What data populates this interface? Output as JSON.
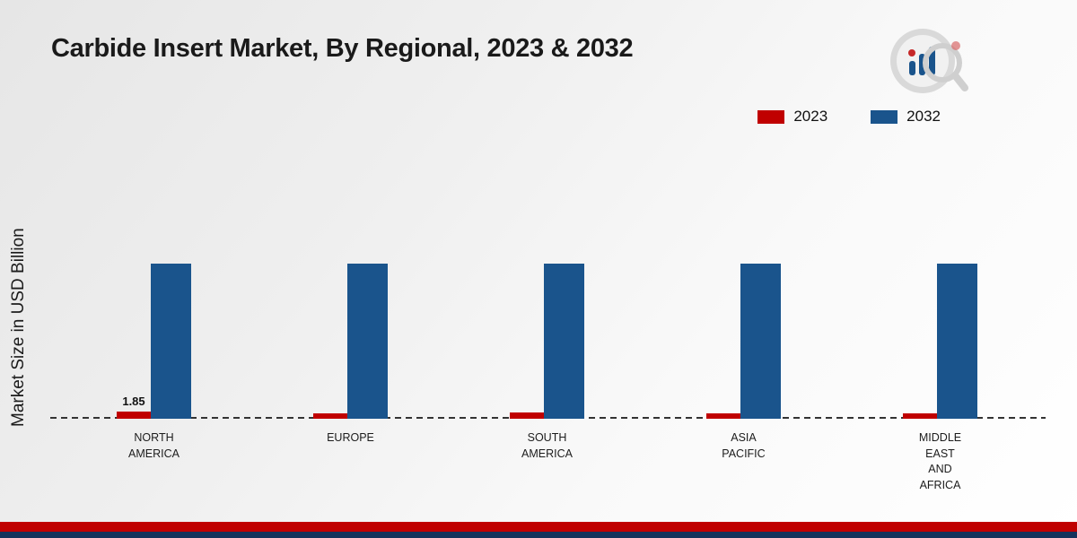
{
  "title": "Carbide Insert Market, By Regional, 2023 & 2032",
  "footer": {
    "red_stripe_color": "#c00000",
    "navy_stripe_color": "#14335c"
  },
  "axis": {
    "baseline_style": "dashed",
    "baseline_color": "#333333"
  },
  "chart_data": {
    "type": "bar",
    "title": "Carbide Insert Market, By Regional, 2023 & 2032",
    "xlabel": "",
    "ylabel": "Market Size in USD Billion",
    "categories": [
      "NORTH AMERICA",
      "EUROPE",
      "SOUTH AMERICA",
      "ASIA PACIFIC",
      "MIDDLE EAST AND AFRICA"
    ],
    "series": [
      {
        "name": "2023",
        "color": "#c00000",
        "values": [
          1.85,
          1.4,
          1.6,
          1.5,
          1.4
        ],
        "data_labels": [
          "1.85",
          "",
          "",
          "",
          ""
        ]
      },
      {
        "name": "2032",
        "color": "#1a548c",
        "values": [
          40,
          40,
          40,
          40,
          40
        ],
        "data_labels": [
          "",
          "",
          "",
          "",
          ""
        ]
      }
    ],
    "ylim": [
      0,
      51
    ],
    "grid": false,
    "legend_position": "top-right"
  }
}
